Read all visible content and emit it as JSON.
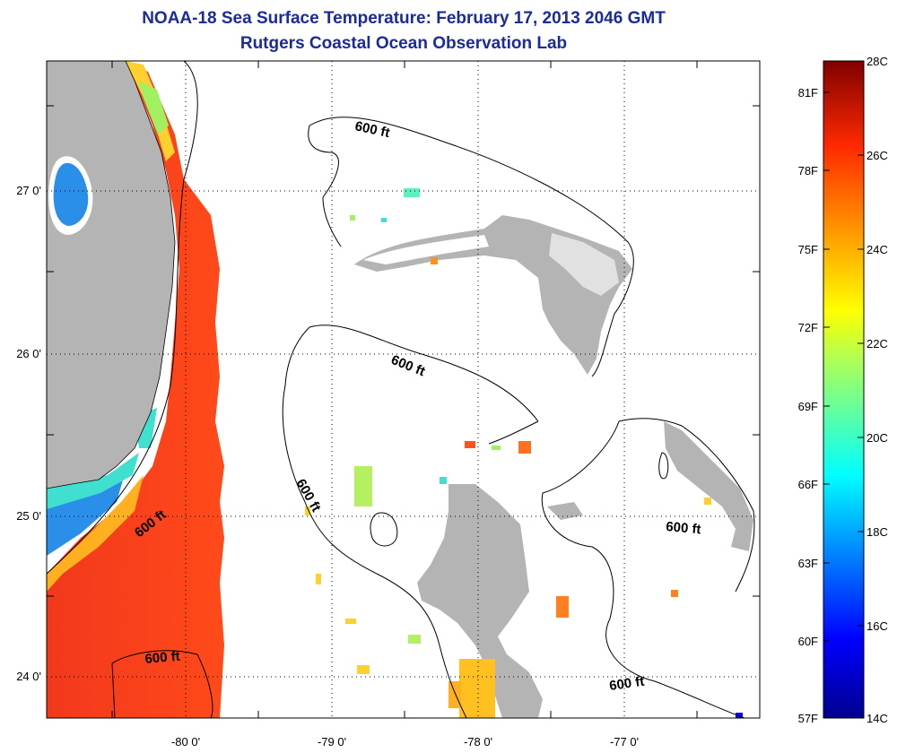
{
  "header": {
    "title": "NOAA-18 Sea Surface Temperature:  February 17, 2013 2046 GMT",
    "subtitle": "Rutgers Coastal Ocean Observation Lab"
  },
  "map": {
    "lon_ticks": [
      "-80 0'",
      "-79 0'",
      "-78 0'",
      "-77 0'"
    ],
    "lat_ticks": [
      "27 0'",
      "26 0'",
      "25 0'",
      "24 0'"
    ],
    "contour_labels": [
      "600 ft",
      "600 ft",
      "600 ft",
      "600 ft",
      "600 ft",
      "600 ft"
    ],
    "colors": {
      "land": "#b4b4b4",
      "warm_sst": "#f2381c",
      "water": "#ffffff"
    }
  },
  "colorbar": {
    "celsius_labels": [
      "28C",
      "26C",
      "24C",
      "22C",
      "20C",
      "18C",
      "16C",
      "14C"
    ],
    "fahrenheit_labels": [
      "81F",
      "78F",
      "75F",
      "72F",
      "69F",
      "66F",
      "63F",
      "60F",
      "57F"
    ]
  }
}
